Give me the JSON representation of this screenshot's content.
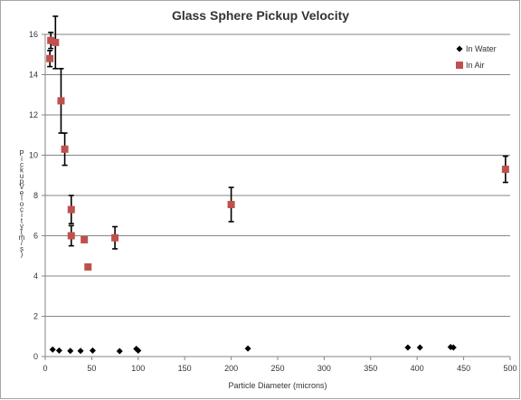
{
  "chart_data": {
    "type": "scatter",
    "title": "Glass Sphere Pickup Velocity",
    "xlabel": "Particle Diameter (microns)",
    "ylabel": "Pickup Velocity (m/s)",
    "xlim": [
      0,
      500
    ],
    "ylim": [
      0,
      16
    ],
    "xticks": [
      "0",
      "50",
      "100",
      "150",
      "200",
      "250",
      "300",
      "350",
      "400",
      "450",
      "500"
    ],
    "yticks": [
      "0",
      "2",
      "4",
      "6",
      "8",
      "10",
      "12",
      "14",
      "16"
    ],
    "grid": "horizontal",
    "legend_position": "top-right",
    "series": [
      {
        "name": "In Water",
        "marker": "diamond",
        "color": "#000000",
        "points": [
          {
            "x": 8,
            "y": 0.35
          },
          {
            "x": 15,
            "y": 0.3
          },
          {
            "x": 27,
            "y": 0.28
          },
          {
            "x": 38,
            "y": 0.28
          },
          {
            "x": 51,
            "y": 0.3
          },
          {
            "x": 80,
            "y": 0.27
          },
          {
            "x": 98,
            "y": 0.38
          },
          {
            "x": 100,
            "y": 0.3
          },
          {
            "x": 218,
            "y": 0.4
          },
          {
            "x": 390,
            "y": 0.45
          },
          {
            "x": 403,
            "y": 0.45
          },
          {
            "x": 436,
            "y": 0.47
          },
          {
            "x": 439,
            "y": 0.45
          }
        ]
      },
      {
        "name": "In Air",
        "marker": "square",
        "color": "#c0504d",
        "points": [
          {
            "x": 5,
            "y": 14.8,
            "err": 0.4
          },
          {
            "x": 6,
            "y": 15.7,
            "err": 0.4
          },
          {
            "x": 11,
            "y": 15.6,
            "err": 1.3
          },
          {
            "x": 17,
            "y": 12.7,
            "err": 1.6
          },
          {
            "x": 21,
            "y": 10.3,
            "err": 0.8
          },
          {
            "x": 28,
            "y": 7.3,
            "err": 0.7
          },
          {
            "x": 28,
            "y": 6.0,
            "err": 0.5
          },
          {
            "x": 42,
            "y": 5.8,
            "err": 0
          },
          {
            "x": 46,
            "y": 4.45,
            "err": 0
          },
          {
            "x": 75,
            "y": 5.9,
            "err": 0.55
          },
          {
            "x": 200,
            "y": 7.55,
            "err": 0.85
          },
          {
            "x": 495,
            "y": 9.3,
            "err": 0.65
          }
        ]
      }
    ]
  }
}
